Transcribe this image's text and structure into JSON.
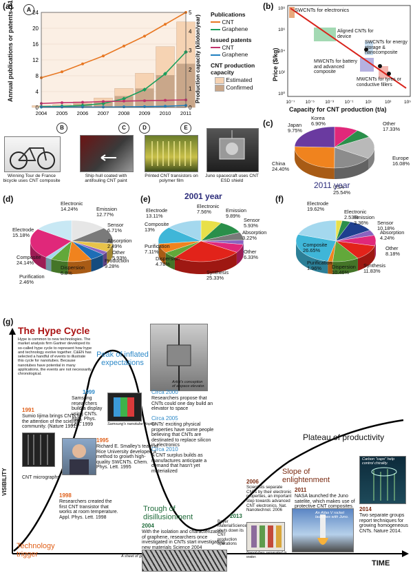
{
  "panel_labels": {
    "a": "(a)",
    "b": "(b)",
    "c": "(c)",
    "d": "(d)",
    "e": "(e)",
    "f": "(f)",
    "g": "(g)"
  },
  "panel_a": {
    "circle_marker": "A",
    "ylabel_left": "Annual publications or patents (×1000)",
    "ylabel_right": "Production capacity (kiloton/year)",
    "legend": {
      "publications_title": "Publications",
      "cnt": "CNT",
      "graphene": "Graphene",
      "patents_title": "Issued patents",
      "patents_cnt": "CNT",
      "patents_graphene": "Graphene",
      "capacity_title": "CNT production capacity",
      "estimated": "Estimated",
      "confirmed": "Confirmed"
    },
    "timeline_markers": [
      "B",
      "C",
      "D",
      "E"
    ],
    "captions": [
      "Winning Tour de France bicycle uses CNT composite",
      "Ship hull coated with antifouling CNT paint",
      "Printed CNT transistors on polymer film",
      "Juno spacecraft uses CNT ESD shield"
    ],
    "colors": {
      "cnt": "#e87722",
      "graphene": "#1a9e5c",
      "patent_cnt": "#c0306b",
      "patent_graphene": "#1f7fbf",
      "estimated": "#f6d3b3",
      "confirmed": "#c9a78a"
    }
  },
  "chart_data": [
    {
      "type": "line",
      "x": [
        2004,
        2005,
        2006,
        2007,
        2008,
        2009,
        2010,
        2011
      ],
      "xlim": [
        2004,
        2011
      ],
      "ylim": [
        0,
        24
      ],
      "ylim_right": [
        0,
        5
      ],
      "yticks": [
        0,
        4,
        8,
        12,
        16,
        20,
        24
      ],
      "yticks_right": [
        0,
        1,
        2,
        3,
        4,
        5
      ],
      "series": [
        {
          "name": "CNT",
          "values": [
            7.5,
            9,
            11,
            13,
            15.5,
            18,
            21,
            24
          ]
        },
        {
          "name": "Graphene",
          "values": [
            0.2,
            0.3,
            0.5,
            1,
            2.2,
            4.5,
            8.5,
            14
          ]
        },
        {
          "name": "CNT",
          "values": [
            1,
            1.2,
            1.3,
            1.5,
            1.6,
            1.7,
            1.8,
            1.9
          ]
        },
        {
          "name": "Graphene",
          "values": [
            0.1,
            0.1,
            0.1,
            0.1,
            0.15,
            0.2,
            0.3,
            0.5
          ]
        }
      ],
      "bars_estimated": [
        0.1,
        0.15,
        0.3,
        0.5,
        1,
        1.8,
        3.2,
        4.5
      ],
      "bars_confirmed": [
        0,
        0,
        0.2,
        0.3,
        0.6,
        1,
        1.7,
        2.3
      ]
    },
    {
      "type": "scatter",
      "xlabel": "Capacity for CNT production (t/a)",
      "ylabel": "Price ($/kg)",
      "x_tick_labels": [
        "10⁻⁷",
        "10⁻⁵",
        "10⁻³",
        "10⁻¹",
        "10¹",
        "10³",
        "10⁵"
      ],
      "y_tick_labels": [
        "10⁰",
        "10²",
        "10⁴",
        "10⁶",
        "10⁸"
      ],
      "regions": [
        {
          "label": "SWCNTs for electronics"
        },
        {
          "label": "Aligned CNTs for device"
        },
        {
          "label": "SWCNTs for energy storage & nanocomposite"
        },
        {
          "label": "MWCNTs for battery and advanced composite"
        },
        {
          "label": "MWCNTs for tyres or conductive fillers"
        }
      ]
    },
    {
      "type": "pie",
      "title": "2011 year",
      "labels": [
        "Japan",
        "Korea",
        "Other",
        "Europe",
        "USA",
        "China"
      ],
      "values_text": [
        "9.75%",
        "6.90%",
        "17.33%",
        "16.08%",
        "25.54%",
        "24.40%"
      ],
      "values": [
        9.75,
        6.9,
        17.33,
        16.08,
        25.54,
        24.4
      ],
      "colors": [
        "#e0287a",
        "#2a8f4a",
        "#b9b9b9",
        "#8c8c8c",
        "#f0831e",
        "#6a3aa0"
      ]
    },
    {
      "type": "pie",
      "labels": [
        "Electronic",
        "Emission",
        "Sensor",
        "Absorption",
        "Other",
        "Production",
        "Dispersion",
        "Purification",
        "Composite",
        "Electrode"
      ],
      "values_text": [
        "14.24%",
        "12.77%",
        "6.71%",
        "2.49%",
        "5.93%",
        "9.28%",
        "6.8%",
        "2.46%",
        "24.14%",
        "15.18%"
      ],
      "values": [
        14.24,
        12.77,
        6.71,
        2.49,
        5.93,
        9.28,
        6.8,
        2.46,
        24.14,
        15.18
      ],
      "colors": [
        "#e6e6e6",
        "#7a7a7a",
        "#e8c34a",
        "#8a63c0",
        "#1e6db6",
        "#f0831e",
        "#62a83a",
        "#a4d8ee",
        "#e0287a",
        "#c8e8f4"
      ]
    },
    {
      "type": "pie",
      "title": "2001 year",
      "labels": [
        "Electronic",
        "Emission",
        "Sensor",
        "Absorption",
        "Other",
        "Synthesis",
        "Dispersion",
        "Purification",
        "Composite",
        "Electrode"
      ],
      "values_text": [
        "7.56%",
        "9.89%",
        "5.93%",
        "3.22%",
        "6.33%",
        "25.33%",
        "4.78%",
        "7.11%",
        "13%",
        "13.11%"
      ],
      "values": [
        7.56,
        9.89,
        5.93,
        3.22,
        6.33,
        25.33,
        4.78,
        7.11,
        13,
        13.11
      ],
      "colors": [
        "#e8e04a",
        "#2a8f4a",
        "#7a7a7a",
        "#8a63c0",
        "#e0287a",
        "#e2231a",
        "#62a83a",
        "#f0831e",
        "#3fb6d8",
        "#a4d8ee"
      ]
    },
    {
      "type": "pie",
      "labels": [
        "Electronic",
        "Emission",
        "Sensor",
        "Absorption",
        "Other",
        "Synthesis",
        "Dispersion",
        "Purification",
        "Composite",
        "Electrode"
      ],
      "values_text": [
        "2.53%",
        "3.36%",
        "10.18%",
        "4.24%",
        "8.18%",
        "11.83%",
        "10.46%",
        "1.96%",
        "26.65%",
        "19.62%"
      ],
      "values": [
        2.53,
        3.36,
        10.18,
        4.24,
        8.18,
        11.83,
        10.46,
        1.96,
        26.65,
        19.62
      ],
      "colors": [
        "#e8e04a",
        "#2a8f4a",
        "#1e3f8f",
        "#8a63c0",
        "#e0287a",
        "#e2231a",
        "#62a83a",
        "#f0831e",
        "#3fb6d8",
        "#a4d8ee"
      ]
    }
  ],
  "panel_g": {
    "title": "The Hype Cycle",
    "intro": "Hype is common to new technologies. The market analysis firm Gartner developed its so-called hype cycle to represent how hype and technology evolve together. C&EN has selected a handful of events to illustrate this cycle for nanotubes. Because nanotubes have potential in many applications, the events are not necessarily chronological.",
    "phases": {
      "trigger": "Technology trigger",
      "peak": "Peak of inflated expectations",
      "trough": "Trough of disillusionment",
      "slope": "Slope of enlightenment",
      "plateau": "Plateau of productivity"
    },
    "axis_y": "VISIBILITY",
    "axis_x": "TIME",
    "events": {
      "y1991": "1991",
      "t1991": "Sumio Iijima brings CNTs to the attention of the scientific community. (Nature 1991)",
      "cnt_micro": "CNT micrographs",
      "y1995": "1995",
      "t1995": "Richard E. Smalley's team at Rice University developed a method to growth high-quality SWCNTs. Chem. Phys. Lett. 1995",
      "y1998": "1998",
      "t1998": "Researchers created the first CNT transistor that works at room temperature. Appl. Phys. Lett. 1998",
      "y1999": "1999",
      "t1999": "Samsung researchers build a display using CNTs. Appl. Phys. Lett. 1999",
      "samsung_cap": "Samsung's nanotube display.",
      "y2000": "Circa 2000",
      "t2000": "Researchers propose that CNTs could one day build an elevator to space",
      "elevator_cap": "Artist's conception of a space elevator.",
      "y2005": "Circa 2005",
      "t2005": "CNTs' exciting physical properties have some people believing that CNTs are destinated to replace silicon in electronics",
      "y2010": "Circa 2010",
      "t2010": "A CNT surplus builds as manufactures anticipate a demand that hasn't yet materialized",
      "y2004": "2004",
      "t2004": "With the isolation and characterization of graphene, researchers once investigated in CNTs start investigating new materials Science 2004",
      "graphene_cap": "A sheet of graphene.",
      "y2013": "2013",
      "t2013": "Bayer MaterialScience shuts down its CNT production operations",
      "y2006": "2006",
      "t2006": "Scientists separate CNTs by their electronic properties, an important step towards advanced CNT electronics. Nat. Nanotechnol. 2006",
      "sep_cap": "Nanotubes separated in water.",
      "y2011": "2011",
      "t2011": "NASA launched the Juno satelite, which makes use of protective CNT composites.",
      "atlas_cap": "An Atlas V rocket launches with Juno.",
      "y2014": "2014",
      "t2014": "Two separate groups report techniques for growing homogeneous CNTs. Nature 2014.",
      "carbon_cap": "Carbon \"caps\" help control chirality."
    }
  }
}
